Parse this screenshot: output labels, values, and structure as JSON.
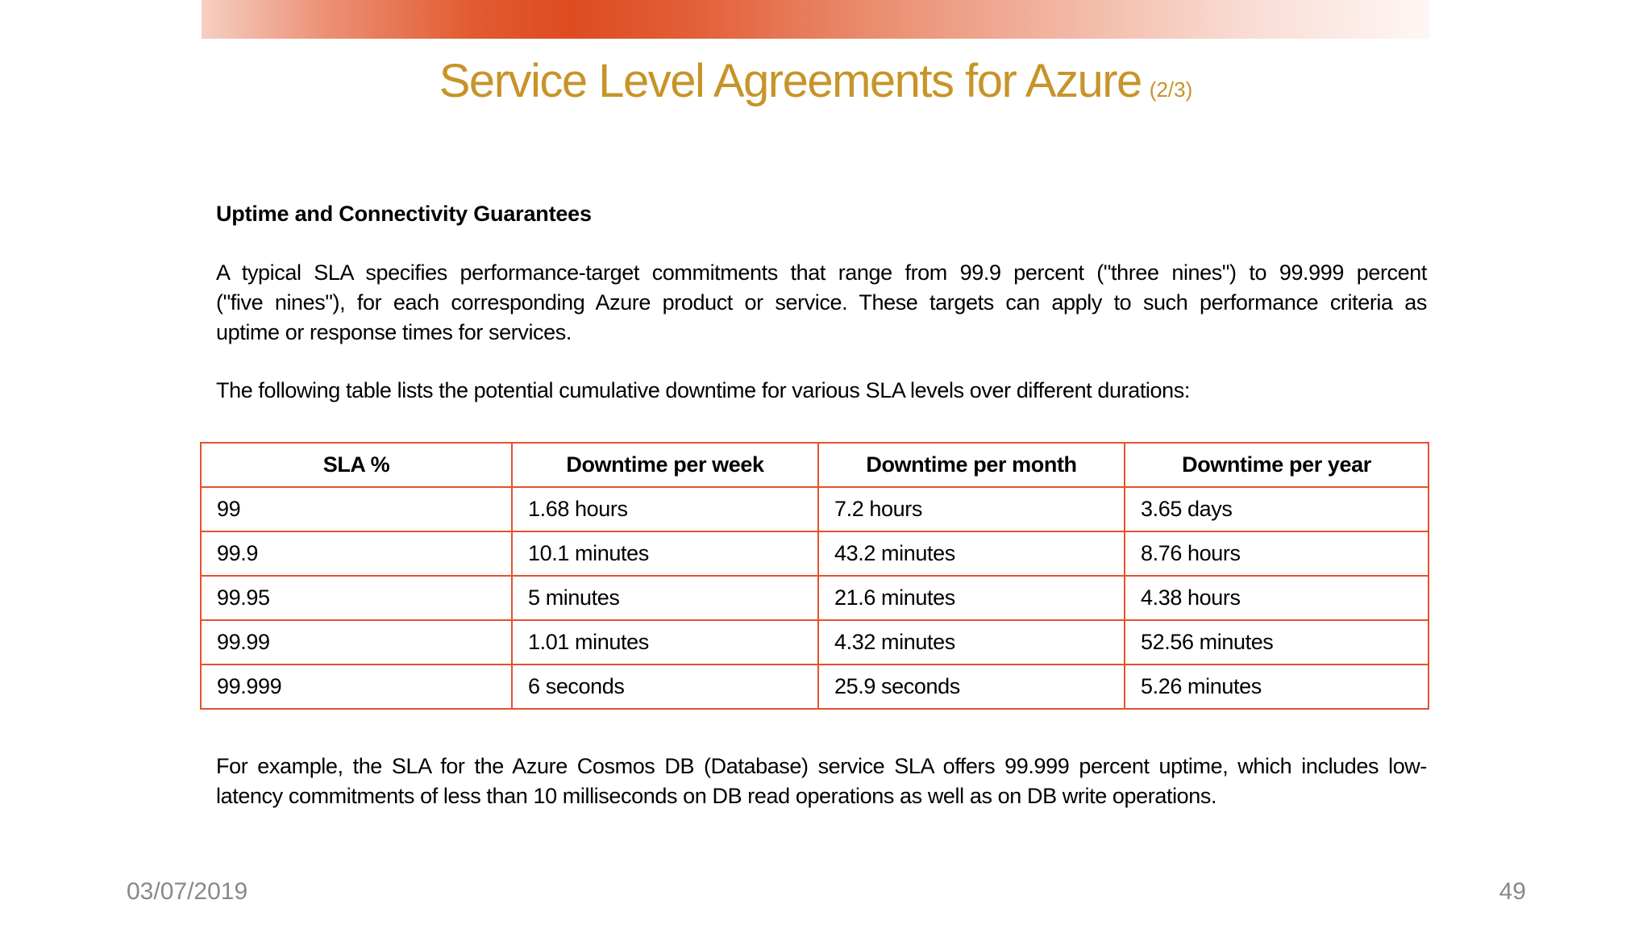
{
  "slide": {
    "title": "Service Level Agreements for Azure",
    "title_suffix": "(2/3)",
    "heading": "Uptime and Connectivity Guarantees",
    "para1_lines": [
      "A typical SLA specifies performance-target commitments that range from 99.9 percent (\"three nines\") to 99.999 percent",
      "(\"five nines\"), for each corresponding Azure product or service. These targets can apply to such performance criteria as",
      "uptime or response times for services."
    ],
    "para2": "The following table lists the potential cumulative downtime for various SLA levels over different durations:",
    "para3_lines": [
      "For example, the SLA for the Azure Cosmos DB (Database) service SLA offers 99.999 percent uptime, which includes low-",
      "latency commitments of less than 10 milliseconds on DB read operations as well as on DB write operations."
    ],
    "footer_date": "03/07/2019",
    "footer_page": "49"
  },
  "table": {
    "headers": [
      "SLA %",
      "Downtime per week",
      "Downtime per month",
      "Downtime per year"
    ],
    "rows": [
      [
        "99",
        "1.68 hours",
        "7.2 hours",
        "3.65 days"
      ],
      [
        "99.9",
        "10.1 minutes",
        "43.2 minutes",
        "8.76 hours"
      ],
      [
        "99.95",
        "5 minutes",
        "21.6 minutes",
        "4.38 hours"
      ],
      [
        "99.99",
        "1.01 minutes",
        "4.32 minutes",
        "52.56 minutes"
      ],
      [
        "99.999",
        "6 seconds",
        "25.9 seconds",
        "5.26 minutes"
      ]
    ]
  },
  "colors": {
    "title_gold": "#c79429",
    "table_border": "#e4522d",
    "accent_bar_peak": "#de4b21",
    "accent_bar_light": "#f6cfc3",
    "footer_gray": "#898989"
  }
}
